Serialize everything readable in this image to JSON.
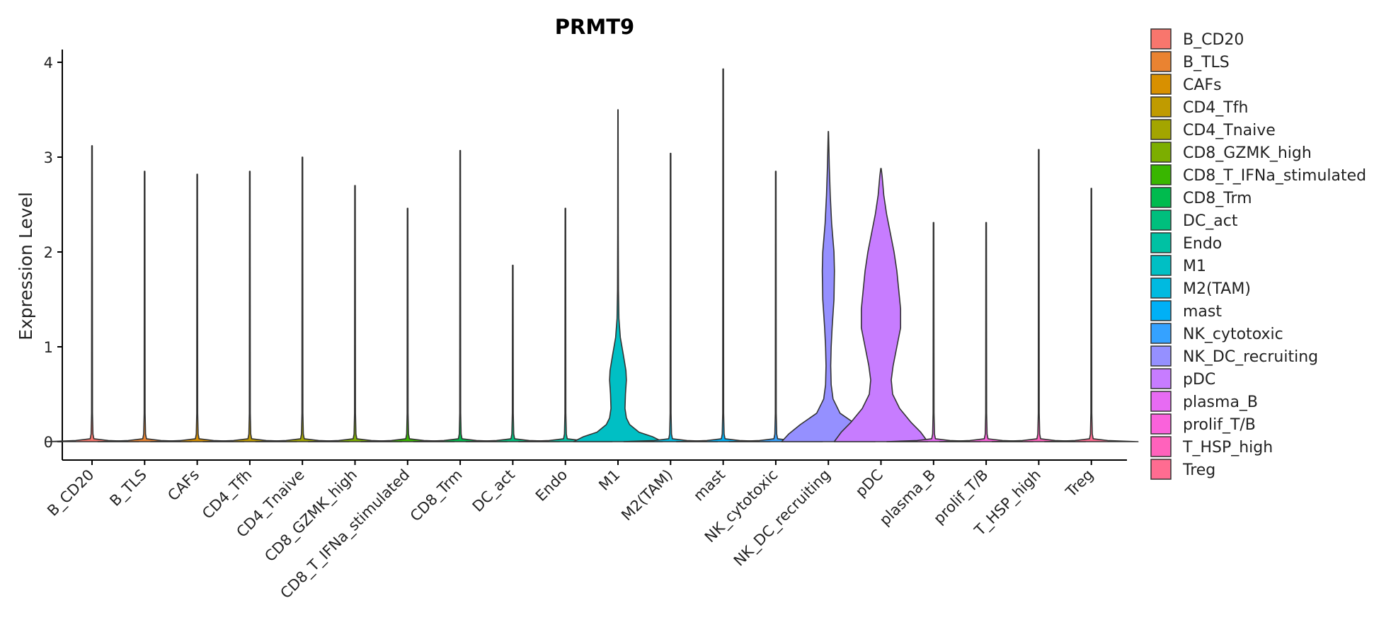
{
  "chart_data": {
    "type": "violin",
    "title": "PRMT9",
    "xlabel": "",
    "ylabel": "Expression Level",
    "ylim": [
      -0.2,
      4.15
    ],
    "yticks": [
      0,
      1,
      2,
      3,
      4
    ],
    "categories": [
      "B_CD20",
      "B_TLS",
      "CAFs",
      "CD4_Tfh",
      "CD4_Tnaive",
      "CD8_GZMK_high",
      "CD8_T_IFNa_stimulated",
      "CD8_Trm",
      "DC_act",
      "Endo",
      "M1",
      "M2(TAM)",
      "mast",
      "NK_cytotoxic",
      "NK_DC_recruiting",
      "pDC",
      "plasma_B",
      "prolif_T/B",
      "T_HSP_high",
      "Treg"
    ],
    "colors": [
      "#F8766D",
      "#EA8331",
      "#D89000",
      "#C09B00",
      "#A3A500",
      "#7CAE00",
      "#39B600",
      "#00BB4E",
      "#00BF7D",
      "#00C1A3",
      "#00BFC4",
      "#00BAE0",
      "#00B0F6",
      "#35A2FF",
      "#9590FF",
      "#C77CFF",
      "#E76BF3",
      "#FA62DB",
      "#FF62BC",
      "#FF6C91"
    ],
    "max_values": [
      3.12,
      2.85,
      2.82,
      2.85,
      3.0,
      2.7,
      2.46,
      3.07,
      1.86,
      2.46,
      3.5,
      3.04,
      3.93,
      2.85,
      3.27,
      2.88,
      2.31,
      2.31,
      3.08,
      2.67
    ],
    "density_profiles": [
      null,
      null,
      null,
      null,
      null,
      null,
      null,
      null,
      null,
      null,
      [
        [
          0,
          0.95
        ],
        [
          0.05,
          0.75
        ],
        [
          0.1,
          0.45
        ],
        [
          0.18,
          0.25
        ],
        [
          0.25,
          0.18
        ],
        [
          0.35,
          0.15
        ],
        [
          0.5,
          0.16
        ],
        [
          0.65,
          0.18
        ],
        [
          0.75,
          0.17
        ],
        [
          0.9,
          0.12
        ],
        [
          1.1,
          0.05
        ],
        [
          1.3,
          0.02
        ],
        [
          1.6,
          0.01
        ],
        [
          2.2,
          0.006
        ],
        [
          3.5,
          0.003
        ]
      ],
      null,
      null,
      null,
      [
        [
          0,
          1.0
        ],
        [
          0.08,
          0.85
        ],
        [
          0.18,
          0.6
        ],
        [
          0.3,
          0.25
        ],
        [
          0.45,
          0.1
        ],
        [
          0.6,
          0.06
        ],
        [
          0.8,
          0.05
        ],
        [
          1.0,
          0.06
        ],
        [
          1.2,
          0.08
        ],
        [
          1.5,
          0.12
        ],
        [
          1.8,
          0.13
        ],
        [
          2.0,
          0.12
        ],
        [
          2.3,
          0.07
        ],
        [
          2.6,
          0.04
        ],
        [
          2.9,
          0.02
        ],
        [
          3.27,
          0.003
        ]
      ],
      [
        [
          0,
          1.0
        ],
        [
          0.1,
          0.85
        ],
        [
          0.2,
          0.65
        ],
        [
          0.35,
          0.4
        ],
        [
          0.5,
          0.25
        ],
        [
          0.65,
          0.22
        ],
        [
          0.8,
          0.26
        ],
        [
          1.0,
          0.34
        ],
        [
          1.2,
          0.42
        ],
        [
          1.4,
          0.42
        ],
        [
          1.6,
          0.38
        ],
        [
          1.8,
          0.34
        ],
        [
          2.0,
          0.28
        ],
        [
          2.2,
          0.2
        ],
        [
          2.4,
          0.12
        ],
        [
          2.6,
          0.06
        ],
        [
          2.8,
          0.025
        ],
        [
          2.88,
          0.005
        ]
      ],
      null,
      null,
      null,
      null
    ],
    "legend": {
      "title": "",
      "position": "right",
      "entries": [
        "B_CD20",
        "B_TLS",
        "CAFs",
        "CD4_Tfh",
        "CD4_Tnaive",
        "CD8_GZMK_high",
        "CD8_T_IFNa_stimulated",
        "CD8_Trm",
        "DC_act",
        "Endo",
        "M1",
        "M2(TAM)",
        "mast",
        "NK_cytotoxic",
        "NK_DC_recruiting",
        "pDC",
        "plasma_B",
        "prolif_T/B",
        "T_HSP_high",
        "Treg"
      ]
    }
  }
}
